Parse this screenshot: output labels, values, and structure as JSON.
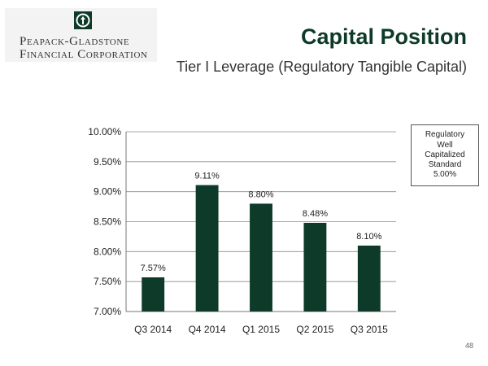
{
  "logo": {
    "line1": "Peapack-Gladstone",
    "line2": "Financial Corporation"
  },
  "slide": {
    "title": "Capital Position",
    "subtitle": "Tier I Leverage (Regulatory Tangible Capital)",
    "page_number": "48"
  },
  "callout": {
    "lines": [
      "Regulatory",
      "Well",
      "Capitalized",
      "Standard",
      "5.00%"
    ]
  },
  "colors": {
    "accent": "#0e3b29",
    "bar": "#0e3b29",
    "grid": "#8c8c8c"
  },
  "chart_data": {
    "type": "bar",
    "title": "Tier I Leverage (Regulatory Tangible Capital)",
    "xlabel": "",
    "ylabel": "",
    "categories": [
      "Q3 2014",
      "Q4 2014",
      "Q1 2015",
      "Q2 2015",
      "Q3 2015"
    ],
    "values": [
      7.57,
      9.11,
      8.8,
      8.48,
      8.1
    ],
    "data_labels": [
      "7.57%",
      "9.11%",
      "8.80%",
      "8.48%",
      "8.10%"
    ],
    "ylim": [
      7.0,
      10.0
    ],
    "yticks": [
      7.0,
      7.5,
      8.0,
      8.5,
      9.0,
      9.5,
      10.0
    ],
    "ytick_labels": [
      "7.00%",
      "7.50%",
      "8.00%",
      "8.50%",
      "9.00%",
      "9.50%",
      "10.00%"
    ],
    "grid": true,
    "legend": "none"
  }
}
